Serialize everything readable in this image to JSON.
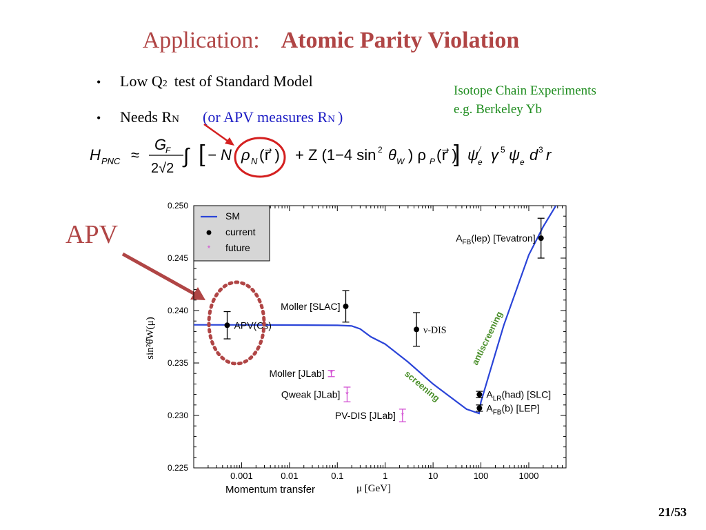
{
  "slide": {
    "title_prefix": "Application:",
    "title_bold": "Atomic  Parity  Violation",
    "bullet1_text": "Low  Q",
    "bullet1_sup": "2",
    "bullet1_rest": "test  of  Standard  Model",
    "bullet2_text": "Needs   R",
    "bullet2_sub": "N",
    "bullet2_paren": "(or  APV  measures  R",
    "bullet2_paren_sub": "N",
    "bullet2_close": ")",
    "isotope_line1": "Isotope  Chain  Experiments",
    "isotope_line2": "e.g.   Berkeley   Yb",
    "apv_label": "APV",
    "page_number": "21/53",
    "colors": {
      "title": "#b04545",
      "blue_text": "#1c1cc4",
      "green_text": "#1e8c1e",
      "red_annot": "#d42020"
    }
  },
  "formula": {
    "H": "H",
    "H_sub": "PNC",
    "approx": "≈",
    "G": "G",
    "G_sub": "F",
    "denom": "2√2",
    "integral": "∫",
    "minusN": "− N",
    "rhoN": "ρ",
    "rhoN_sub": "N",
    "rvec1": "(r⃗ )",
    "plusZ": "+ Z (1−4 sin",
    "sin_sup": "2",
    "theta": "θ",
    "theta_sub": "W",
    "close": ") ρ",
    "rhoP_sub": "P",
    "rvec2": "(r⃗ )",
    "psi_e": "ψ",
    "psi_e_sub": "e",
    "psi_e_sup": "/",
    "gamma": "γ",
    "gamma_sup": "5",
    "psi2": "ψ",
    "psi2_sub": "e",
    "d": "d",
    "d_sup": "3",
    "r": "r"
  },
  "chart_data": {
    "type": "scatter",
    "xscale": "log",
    "xlim": [
      0.0001,
      6000
    ],
    "ylim": [
      0.225,
      0.25
    ],
    "xlabel": "μ [GeV]",
    "xlabel_extra": "Momentum transfer",
    "ylabel": "sin²θ̂W(μ)",
    "x_ticks": [
      "0.001",
      "0.01",
      "0.1",
      "1",
      "10",
      "100",
      "1000"
    ],
    "x_tick_values": [
      0.001,
      0.01,
      0.1,
      1,
      10,
      100,
      1000
    ],
    "y_ticks": [
      "0.225",
      "0.230",
      "0.235",
      "0.240",
      "0.245",
      "0.250"
    ],
    "y_tick_values": [
      0.225,
      0.23,
      0.235,
      0.24,
      0.245,
      0.25
    ],
    "legend": {
      "position": "top-left",
      "entries": [
        {
          "label": "SM",
          "kind": "line",
          "color": "#2a44d8"
        },
        {
          "label": "current",
          "kind": "dot",
          "color": "#000000"
        },
        {
          "label": "future",
          "kind": "star",
          "color": "#d24fd2"
        }
      ]
    },
    "sm_curve": {
      "name": "SM",
      "color": "#2a44d8",
      "points": [
        [
          0.0001,
          0.23864
        ],
        [
          0.001,
          0.23863
        ],
        [
          0.01,
          0.23862
        ],
        [
          0.1,
          0.23859
        ],
        [
          0.2,
          0.23853
        ],
        [
          0.3,
          0.23825
        ],
        [
          0.5,
          0.2375
        ],
        [
          1,
          0.2368
        ],
        [
          3,
          0.2351
        ],
        [
          10,
          0.233
        ],
        [
          50,
          0.2306
        ],
        [
          91.2,
          0.2302
        ],
        [
          100,
          0.2313
        ],
        [
          300,
          0.2386
        ],
        [
          1000,
          0.2453
        ],
        [
          2000,
          0.248
        ],
        [
          5000,
          0.251
        ]
      ]
    },
    "current": [
      {
        "label": "APV(Cs)",
        "x": 0.0005,
        "y": 0.2386,
        "err": 0.0013,
        "label_side": "right"
      },
      {
        "label": "Moller [SLAC]",
        "x": 0.15,
        "y": 0.2404,
        "err": 0.0015,
        "label_side": "left"
      },
      {
        "label": "ν-DIS",
        "x": 4.5,
        "y": 0.2382,
        "err": 0.0016,
        "label_side": "right",
        "serif": true
      },
      {
        "label": "A_LR(had) [SLC]",
        "x": 93,
        "y": 0.232,
        "err": 0.0003,
        "label_side": "right"
      },
      {
        "label": "A_FB(b) [LEP]",
        "x": 93,
        "y": 0.2307,
        "err": 0.0003,
        "label_side": "right"
      },
      {
        "label": "A_FB(lep) [Tevatron]",
        "x": 1800,
        "y": 0.2469,
        "err": 0.0019,
        "label_side": "left"
      }
    ],
    "future": [
      {
        "label": "Moller [JLab]",
        "x": 0.075,
        "y": 0.234,
        "err": 0.0003
      },
      {
        "label": "Qweak [JLab]",
        "x": 0.16,
        "y": 0.232,
        "err": 0.0007
      },
      {
        "label": "PV-DIS [JLab]",
        "x": 2.3,
        "y": 0.23,
        "err": 0.0006
      }
    ],
    "annotations": [
      {
        "text": "screening",
        "color": "#4a8f2a"
      },
      {
        "text": "antiscreening",
        "color": "#4a8f2a"
      }
    ]
  }
}
